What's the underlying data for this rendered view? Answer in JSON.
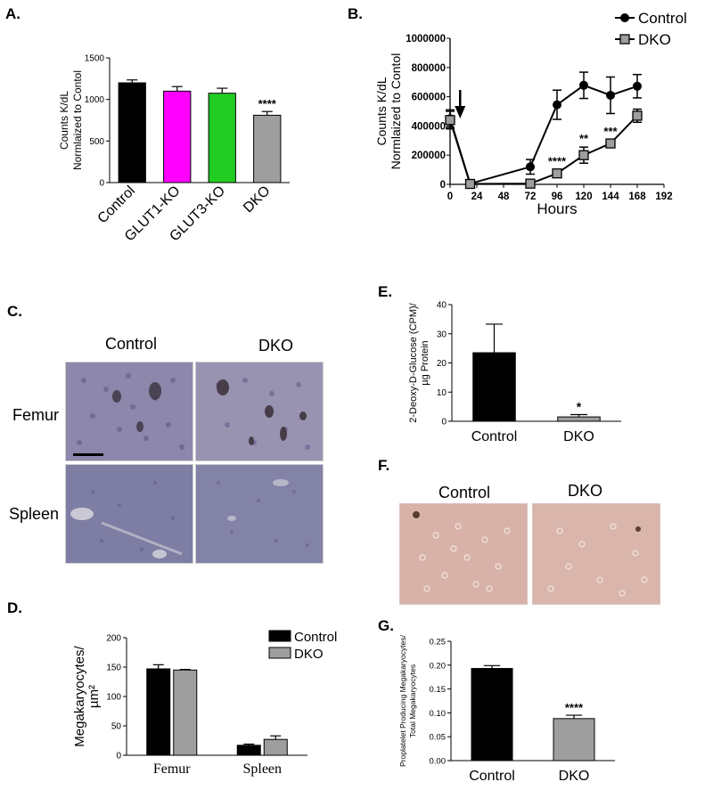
{
  "panels": {
    "A": "A.",
    "B": "B.",
    "C": "C.",
    "D": "D.",
    "E": "E.",
    "F": "F.",
    "G": "G."
  },
  "colors": {
    "black": "#000000",
    "magenta": "#ff00ff",
    "green": "#22cc22",
    "gray": "#9e9e9e"
  },
  "micrographs": {
    "c_col_labels": [
      "Control",
      "DKO"
    ],
    "c_row_labels": [
      "Femur",
      "Spleen"
    ],
    "f_col_labels": [
      "Control",
      "DKO"
    ]
  },
  "chart_data": [
    {
      "id": "A",
      "type": "bar",
      "ylabel": [
        "Counts K/dL",
        "Normlaized to Contol"
      ],
      "categories": [
        "Control",
        "GLUT1-KO",
        "GLUT3-KO",
        "DKO"
      ],
      "values": [
        1200,
        1100,
        1075,
        810
      ],
      "errors": [
        35,
        55,
        60,
        45
      ],
      "colors": [
        "#000000",
        "#ff00ff",
        "#22cc22",
        "#9e9e9e"
      ],
      "ylim": [
        0,
        1500
      ],
      "yticks": [
        0,
        500,
        1000,
        1500
      ],
      "annotations": [
        {
          "index": 3,
          "text": "****"
        }
      ]
    },
    {
      "id": "B",
      "type": "line",
      "xlabel": "Hours",
      "ylabel": [
        "Counts K/dL",
        "Normlaized to Contol"
      ],
      "xlim": [
        0,
        192
      ],
      "xticks": [
        0,
        24,
        48,
        72,
        96,
        120,
        144,
        168,
        192
      ],
      "ylim": [
        0,
        1000000
      ],
      "yticks": [
        0,
        200000,
        400000,
        600000,
        800000,
        1000000
      ],
      "legend": "top-right",
      "series": [
        {
          "name": "Control",
          "marker": "circle",
          "color": "#000000",
          "x": [
            0,
            18,
            72,
            96,
            120,
            144,
            168
          ],
          "y": [
            450000,
            5000,
            120000,
            545000,
            678000,
            610000,
            672000
          ],
          "err": [
            60000,
            10000,
            50000,
            100000,
            90000,
            125000,
            80000
          ]
        },
        {
          "name": "DKO",
          "marker": "square",
          "color": "#9e9e9e",
          "x": [
            0,
            18,
            72,
            96,
            120,
            144,
            168
          ],
          "y": [
            440000,
            3000,
            5000,
            75000,
            200000,
            280000,
            470000
          ],
          "err": [
            60000,
            8000,
            8000,
            25000,
            55000,
            25000,
            45000
          ]
        }
      ],
      "arrow_x": 9,
      "annotations": [
        {
          "x": 96,
          "text": "****"
        },
        {
          "x": 120,
          "text": "**"
        },
        {
          "x": 144,
          "text": "***"
        }
      ]
    },
    {
      "id": "D",
      "type": "bar",
      "ylabel": [
        "Megakaryocytes/",
        "µm²"
      ],
      "categories": [
        "Femur",
        "Spleen"
      ],
      "series": [
        {
          "name": "Control",
          "values": [
            147,
            17
          ],
          "errors": [
            7,
            2
          ],
          "color": "#000000"
        },
        {
          "name": "DKO",
          "values": [
            145,
            27
          ],
          "errors": [
            1,
            6
          ],
          "color": "#9e9e9e"
        }
      ],
      "ylim": [
        0,
        200
      ],
      "yticks": [
        0,
        50,
        100,
        150,
        200
      ],
      "legend": "top-right"
    },
    {
      "id": "E",
      "type": "bar",
      "ylabel": [
        "2-Deoxy-D-Glucose (CPM)/",
        "µg Protein"
      ],
      "categories": [
        "Control",
        "DKO"
      ],
      "values": [
        23.5,
        1.5
      ],
      "errors": [
        9.8,
        0.8
      ],
      "colors": [
        "#000000",
        "#9e9e9e"
      ],
      "ylim": [
        0,
        40
      ],
      "yticks": [
        0,
        10,
        20,
        30,
        40
      ],
      "annotations": [
        {
          "index": 1,
          "text": "*"
        }
      ]
    },
    {
      "id": "G",
      "type": "bar",
      "ylabel": [
        "Proplatelet Producing Megakaryocytes/",
        "Total Megakaryocytes"
      ],
      "categories": [
        "Control",
        "DKO"
      ],
      "values": [
        0.193,
        0.088
      ],
      "errors": [
        0.006,
        0.007
      ],
      "colors": [
        "#000000",
        "#9e9e9e"
      ],
      "ylim": [
        0,
        0.25
      ],
      "yticks": [
        "0.00",
        "0.05",
        "0.10",
        "0.15",
        "0.20",
        "0.25"
      ],
      "annotations": [
        {
          "index": 1,
          "text": "****"
        }
      ]
    }
  ]
}
